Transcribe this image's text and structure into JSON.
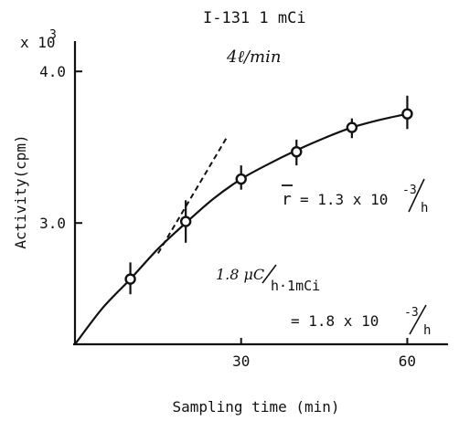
{
  "chart_data": {
    "type": "scatter",
    "title_lines": [
      "I-131    1 mCi",
      "4ℓ/min"
    ],
    "xlabel": "Sampling      time (min)",
    "ylabel": "Activity(cpm)",
    "y_multiplier": "x 10",
    "y_multiplier_exp": "3",
    "xlim": [
      0,
      65
    ],
    "ylim": [
      2.2,
      4.2
    ],
    "x_ticks": [
      30,
      60
    ],
    "x_tick_labels": [
      "30",
      "60"
    ],
    "y_ticks": [
      3.0,
      4.0
    ],
    "y_tick_labels": [
      "3.0",
      "4.0"
    ],
    "grid": false,
    "series": [
      {
        "x": [
          10,
          20,
          30,
          40,
          50,
          60
        ],
        "y": [
          2.63,
          3.01,
          3.29,
          3.47,
          3.63,
          3.72
        ],
        "err_low": [
          2.53,
          2.87,
          3.22,
          3.38,
          3.56,
          3.62
        ],
        "err_high": [
          2.74,
          3.15,
          3.38,
          3.55,
          3.69,
          3.84
        ]
      }
    ],
    "fit_curve": {
      "x": [
        0,
        5,
        10,
        15,
        20,
        25,
        30,
        35,
        40,
        45,
        50,
        55,
        60
      ],
      "y": [
        2.2,
        2.44,
        2.63,
        2.83,
        3.0,
        3.16,
        3.29,
        3.39,
        3.48,
        3.56,
        3.63,
        3.68,
        3.72
      ]
    },
    "tangent_line": {
      "x": [
        15,
        27.5
      ],
      "y": [
        2.8,
        3.57
      ]
    },
    "annotations": {
      "rate_label": "r",
      "rate_value": "= 1.3 x 10",
      "rate_exp": "-3",
      "rate_unit": "h",
      "ratio_label": "1.8 μC",
      "ratio_den": "h·1mCi",
      "ratio_value": "= 1.8 x 10",
      "ratio_exp": "-3",
      "ratio_unit": "h"
    }
  }
}
